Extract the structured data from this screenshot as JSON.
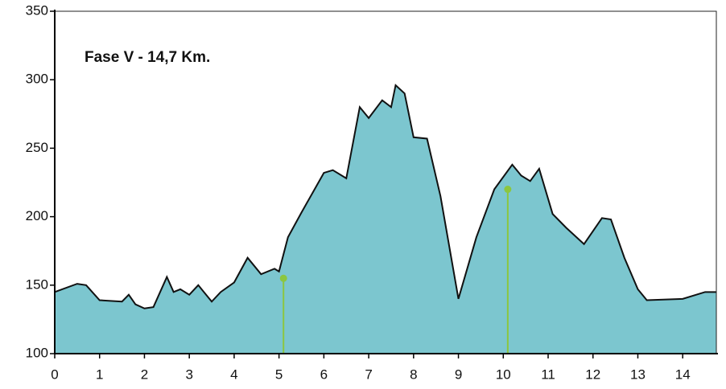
{
  "chart_data": {
    "type": "area",
    "annotation": "Fase V - 14,7 Km.",
    "x": [
      0,
      0.5,
      0.7,
      1.0,
      1.5,
      1.65,
      1.8,
      2.0,
      2.2,
      2.5,
      2.65,
      2.8,
      3.0,
      3.2,
      3.5,
      3.7,
      4.0,
      4.3,
      4.6,
      4.9,
      5.0,
      5.2,
      5.5,
      6.0,
      6.2,
      6.5,
      6.8,
      7.0,
      7.3,
      7.5,
      7.6,
      7.8,
      8.0,
      8.3,
      8.6,
      9.0,
      9.4,
      9.8,
      10.2,
      10.4,
      10.6,
      10.8,
      11.1,
      11.4,
      11.8,
      12.2,
      12.4,
      12.7,
      13.0,
      13.2,
      14.0,
      14.5,
      14.75
    ],
    "values": [
      145,
      151,
      150,
      139,
      138,
      143,
      136,
      133,
      134,
      156,
      145,
      147,
      143,
      150,
      138,
      145,
      152,
      170,
      158,
      162,
      160,
      185,
      203,
      232,
      234,
      228,
      280,
      272,
      285,
      280,
      296,
      290,
      258,
      257,
      215,
      140,
      185,
      220,
      238,
      230,
      226,
      235,
      202,
      192,
      180,
      199,
      198,
      170,
      147,
      139,
      140,
      145,
      145
    ],
    "color": "#7cc6cf",
    "line_color": "#111111",
    "markers": {
      "color": "#8cc63f",
      "x": [
        5.1,
        10.1
      ],
      "values": [
        155,
        220
      ]
    },
    "xlim": [
      0,
      14.75
    ],
    "xticks": [
      0,
      1,
      2,
      3,
      4,
      5,
      6,
      7,
      8,
      9,
      10,
      11,
      12,
      13,
      14
    ],
    "ylim": [
      100,
      350
    ],
    "yticks": [
      100,
      150,
      200,
      250,
      300,
      350
    ],
    "grid": false
  }
}
